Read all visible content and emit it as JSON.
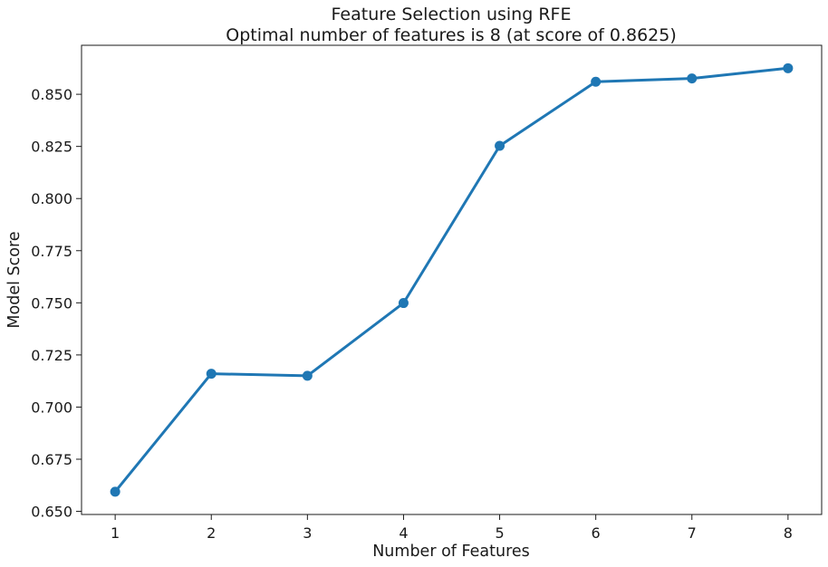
{
  "chart_data": {
    "type": "line",
    "title": "Feature Selection using RFE",
    "subtitle": "Optimal number of features is 8 (at score of 0.8625)",
    "xlabel": "Number of Features",
    "ylabel": "Model Score",
    "x": [
      1,
      2,
      3,
      4,
      5,
      6,
      7,
      8
    ],
    "series": [
      {
        "values": [
          0.6594,
          0.716,
          0.715,
          0.7499,
          0.8253,
          0.856,
          0.8576,
          0.8625
        ],
        "color": "#1f77b4"
      }
    ],
    "xticks": [
      "1",
      "2",
      "3",
      "4",
      "5",
      "6",
      "7",
      "8"
    ],
    "yticks": [
      "0.650",
      "0.675",
      "0.700",
      "0.725",
      "0.750",
      "0.775",
      "0.800",
      "0.825",
      "0.850"
    ],
    "xlim": [
      0.65,
      8.35
    ],
    "ylim": [
      0.6485,
      0.8735
    ],
    "grid": false,
    "legend": "none"
  }
}
